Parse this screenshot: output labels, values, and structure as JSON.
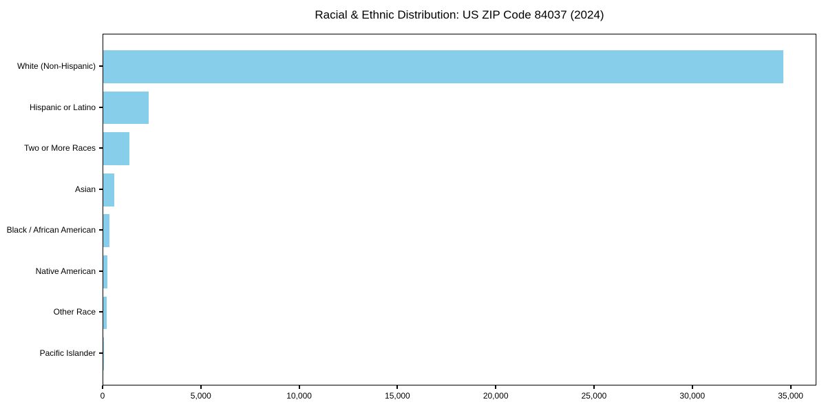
{
  "chart_data": {
    "type": "bar",
    "orientation": "horizontal",
    "title": "Racial & Ethnic Distribution: US ZIP Code 84037 (2024)",
    "xlabel": "",
    "ylabel": "",
    "categories": [
      "White (Non-Hispanic)",
      "Hispanic or Latino",
      "Two or More Races",
      "Asian",
      "Black / African American",
      "Native American",
      "Other Race",
      "Pacific Islander"
    ],
    "values": [
      34600,
      2310,
      1330,
      570,
      310,
      200,
      160,
      30
    ],
    "xlim": [
      0,
      36310
    ],
    "x_ticks": [
      0,
      5000,
      10000,
      15000,
      20000,
      25000,
      30000,
      35000
    ],
    "x_tick_labels": [
      "0",
      "5,000",
      "10,000",
      "15,000",
      "20,000",
      "25,000",
      "30,000",
      "35,000"
    ],
    "bar_color": "#87CEEB",
    "grid": false,
    "legend_position": "none"
  },
  "colors": {
    "bar": "#87CEEB",
    "spine": "#000000",
    "text": "#000000",
    "background": "#ffffff"
  }
}
